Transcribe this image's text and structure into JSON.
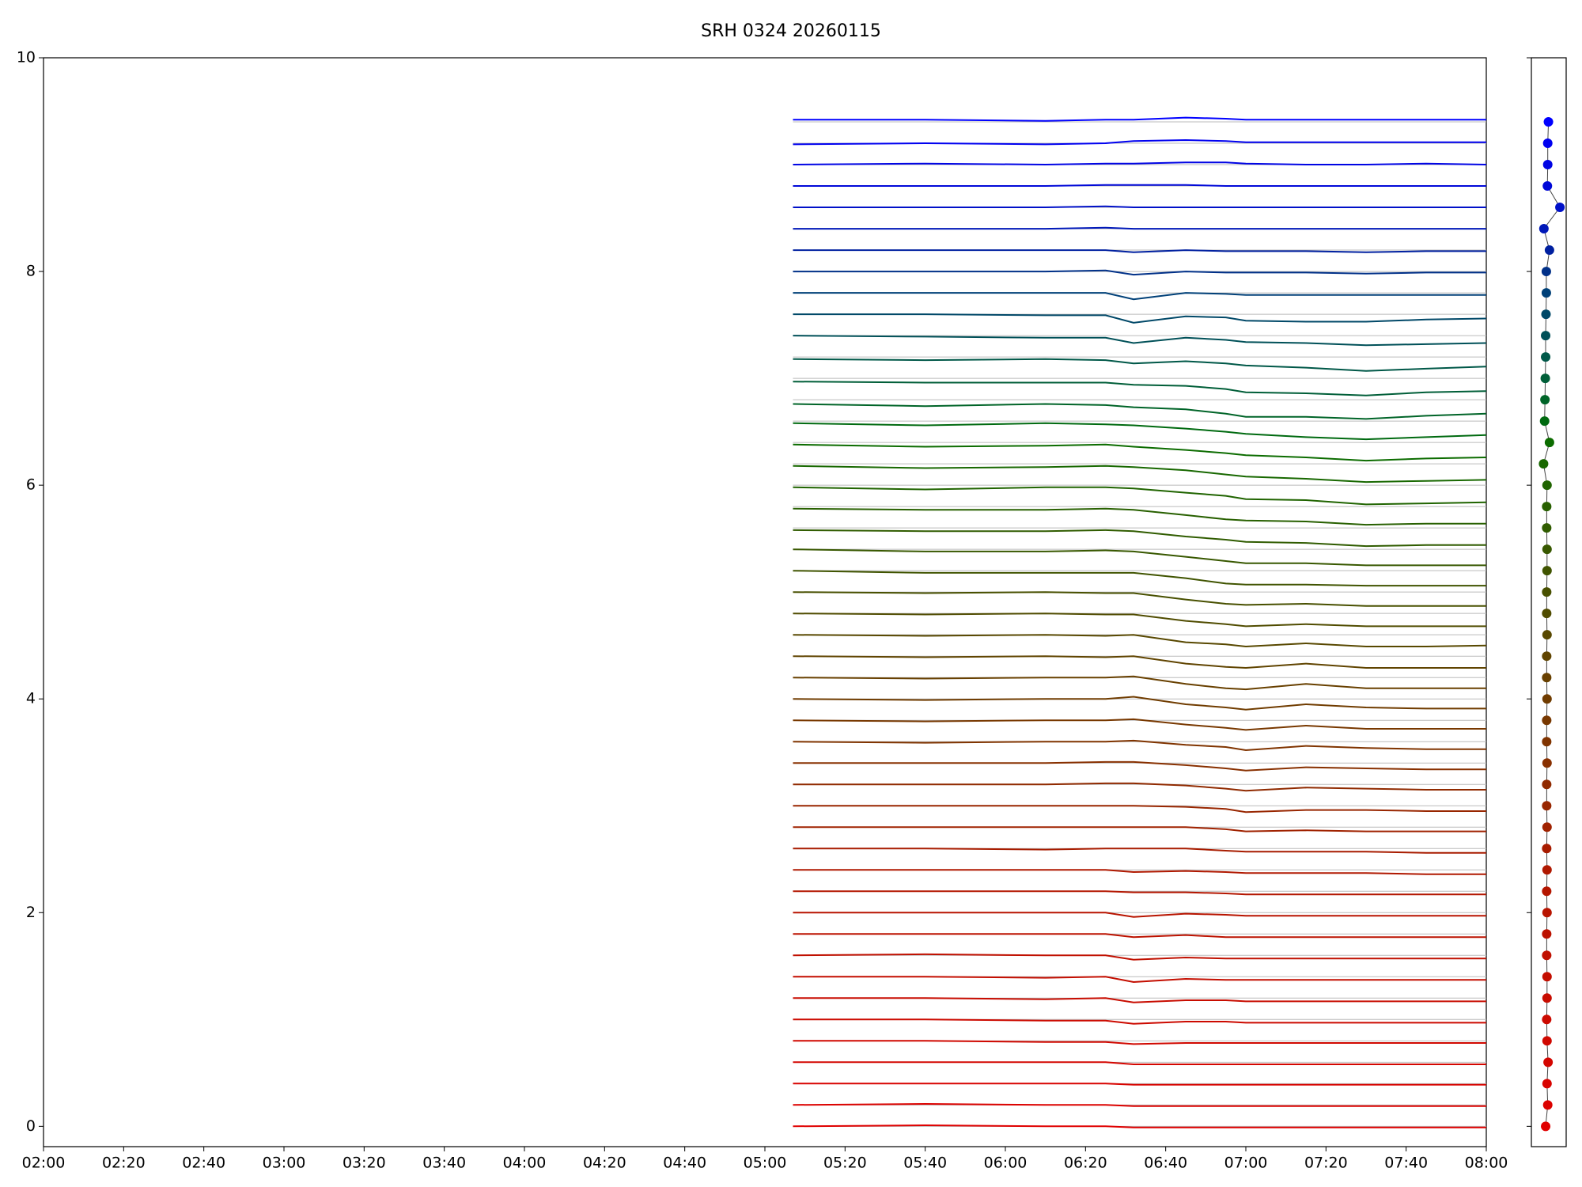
{
  "chart_data": {
    "type": "line",
    "title": "SRH 0324 20260115",
    "xlim": [
      "02:00",
      "08:00"
    ],
    "xticks": [
      "02:00",
      "02:20",
      "02:40",
      "03:00",
      "03:20",
      "03:40",
      "04:00",
      "04:20",
      "04:40",
      "05:00",
      "05:20",
      "05:40",
      "06:00",
      "06:20",
      "06:40",
      "07:00",
      "07:20",
      "07:40",
      "08:00"
    ],
    "ylim": [
      -0.19,
      10
    ],
    "yticks": [
      0,
      2,
      4,
      6,
      8,
      10
    ],
    "baseline_color": "#bbbbbb",
    "x": [
      "05:07",
      "05:40",
      "06:10",
      "06:25",
      "06:32",
      "06:45",
      "06:55",
      "07:00",
      "07:15",
      "07:30",
      "07:45",
      "08:00"
    ],
    "series": [
      {
        "offset": 0,
        "color": "#e00000",
        "values": [
          0.0,
          0.01,
          0.0,
          0.0,
          -0.01,
          -0.01,
          -0.01,
          -0.01,
          -0.01,
          -0.01,
          -0.01,
          -0.01
        ]
      },
      {
        "offset": 0.2,
        "color": "#dc0200",
        "values": [
          0.2,
          0.21,
          0.2,
          0.2,
          0.19,
          0.19,
          0.19,
          0.19,
          0.19,
          0.19,
          0.19,
          0.19
        ]
      },
      {
        "offset": 0.4,
        "color": "#d80400",
        "values": [
          0.4,
          0.4,
          0.4,
          0.4,
          0.39,
          0.39,
          0.39,
          0.39,
          0.39,
          0.39,
          0.39,
          0.39
        ]
      },
      {
        "offset": 0.6,
        "color": "#d40600",
        "values": [
          0.6,
          0.6,
          0.6,
          0.6,
          0.58,
          0.58,
          0.58,
          0.58,
          0.58,
          0.58,
          0.58,
          0.58
        ]
      },
      {
        "offset": 0.8,
        "color": "#d00800",
        "values": [
          0.8,
          0.8,
          0.79,
          0.79,
          0.77,
          0.78,
          0.78,
          0.78,
          0.78,
          0.78,
          0.78,
          0.78
        ]
      },
      {
        "offset": 1.0,
        "color": "#cc0a00",
        "values": [
          1.0,
          1.0,
          0.99,
          0.99,
          0.96,
          0.98,
          0.98,
          0.97,
          0.97,
          0.97,
          0.97,
          0.97
        ]
      },
      {
        "offset": 1.2,
        "color": "#c80c00",
        "values": [
          1.2,
          1.2,
          1.19,
          1.2,
          1.16,
          1.18,
          1.18,
          1.17,
          1.17,
          1.17,
          1.17,
          1.17
        ]
      },
      {
        "offset": 1.4,
        "color": "#c40e00",
        "values": [
          1.4,
          1.4,
          1.39,
          1.4,
          1.35,
          1.38,
          1.37,
          1.37,
          1.37,
          1.37,
          1.37,
          1.37
        ]
      },
      {
        "offset": 1.6,
        "color": "#c01000",
        "values": [
          1.6,
          1.61,
          1.6,
          1.6,
          1.56,
          1.58,
          1.57,
          1.57,
          1.57,
          1.57,
          1.57,
          1.57
        ]
      },
      {
        "offset": 1.8,
        "color": "#bc1200",
        "values": [
          1.8,
          1.8,
          1.8,
          1.8,
          1.77,
          1.79,
          1.77,
          1.77,
          1.77,
          1.77,
          1.77,
          1.77
        ]
      },
      {
        "offset": 2.0,
        "color": "#b81400",
        "values": [
          2.0,
          2.0,
          2.0,
          2.0,
          1.96,
          1.99,
          1.98,
          1.97,
          1.97,
          1.97,
          1.97,
          1.97
        ]
      },
      {
        "offset": 2.2,
        "color": "#b41600",
        "values": [
          2.2,
          2.2,
          2.2,
          2.2,
          2.19,
          2.19,
          2.18,
          2.17,
          2.17,
          2.17,
          2.17,
          2.17
        ]
      },
      {
        "offset": 2.4,
        "color": "#b01800",
        "values": [
          2.4,
          2.4,
          2.4,
          2.4,
          2.38,
          2.39,
          2.38,
          2.37,
          2.37,
          2.37,
          2.36,
          2.36
        ]
      },
      {
        "offset": 2.6,
        "color": "#a81c00",
        "values": [
          2.6,
          2.6,
          2.59,
          2.6,
          2.6,
          2.6,
          2.58,
          2.57,
          2.57,
          2.57,
          2.56,
          2.56
        ]
      },
      {
        "offset": 2.8,
        "color": "#a02200",
        "values": [
          2.8,
          2.8,
          2.8,
          2.8,
          2.8,
          2.8,
          2.78,
          2.76,
          2.77,
          2.76,
          2.76,
          2.76
        ]
      },
      {
        "offset": 3.0,
        "color": "#982600",
        "values": [
          3.0,
          3.0,
          3.0,
          3.0,
          3.0,
          2.99,
          2.97,
          2.94,
          2.96,
          2.96,
          2.95,
          2.95
        ]
      },
      {
        "offset": 3.2,
        "color": "#902a00",
        "values": [
          3.2,
          3.2,
          3.2,
          3.21,
          3.21,
          3.19,
          3.16,
          3.14,
          3.17,
          3.16,
          3.15,
          3.15
        ]
      },
      {
        "offset": 3.4,
        "color": "#883000",
        "values": [
          3.4,
          3.4,
          3.4,
          3.41,
          3.41,
          3.38,
          3.35,
          3.33,
          3.36,
          3.35,
          3.34,
          3.34
        ]
      },
      {
        "offset": 3.6,
        "color": "#803400",
        "values": [
          3.6,
          3.59,
          3.6,
          3.6,
          3.61,
          3.57,
          3.55,
          3.52,
          3.56,
          3.54,
          3.53,
          3.53
        ]
      },
      {
        "offset": 3.8,
        "color": "#783800",
        "values": [
          3.8,
          3.79,
          3.8,
          3.8,
          3.81,
          3.76,
          3.73,
          3.71,
          3.75,
          3.72,
          3.72,
          3.72
        ]
      },
      {
        "offset": 4.0,
        "color": "#703c00",
        "values": [
          4.0,
          3.99,
          4.0,
          4.0,
          4.02,
          3.95,
          3.92,
          3.9,
          3.95,
          3.92,
          3.91,
          3.91
        ]
      },
      {
        "offset": 4.2,
        "color": "#684000",
        "values": [
          4.2,
          4.19,
          4.2,
          4.2,
          4.21,
          4.14,
          4.1,
          4.09,
          4.14,
          4.1,
          4.1,
          4.1
        ]
      },
      {
        "offset": 4.4,
        "color": "#604400",
        "values": [
          4.4,
          4.39,
          4.4,
          4.39,
          4.4,
          4.33,
          4.3,
          4.29,
          4.33,
          4.29,
          4.29,
          4.29
        ]
      },
      {
        "offset": 4.6,
        "color": "#584800",
        "values": [
          4.6,
          4.59,
          4.6,
          4.59,
          4.6,
          4.53,
          4.51,
          4.49,
          4.52,
          4.49,
          4.49,
          4.5
        ]
      },
      {
        "offset": 4.8,
        "color": "#504c00",
        "values": [
          4.8,
          4.79,
          4.8,
          4.79,
          4.79,
          4.73,
          4.7,
          4.68,
          4.7,
          4.68,
          4.68,
          4.68
        ]
      },
      {
        "offset": 5.0,
        "color": "#485000",
        "values": [
          5.0,
          4.99,
          5.0,
          4.99,
          4.99,
          4.93,
          4.89,
          4.88,
          4.89,
          4.87,
          4.87,
          4.87
        ]
      },
      {
        "offset": 5.2,
        "color": "#405400",
        "values": [
          5.2,
          5.18,
          5.18,
          5.18,
          5.18,
          5.13,
          5.08,
          5.07,
          5.07,
          5.06,
          5.06,
          5.06
        ]
      },
      {
        "offset": 5.4,
        "color": "#385800",
        "values": [
          5.4,
          5.38,
          5.38,
          5.39,
          5.38,
          5.33,
          5.29,
          5.27,
          5.27,
          5.25,
          5.25,
          5.25
        ]
      },
      {
        "offset": 5.6,
        "color": "#305c00",
        "values": [
          5.58,
          5.57,
          5.57,
          5.58,
          5.57,
          5.52,
          5.49,
          5.47,
          5.46,
          5.43,
          5.44,
          5.44
        ]
      },
      {
        "offset": 5.8,
        "color": "#286000",
        "values": [
          5.78,
          5.77,
          5.77,
          5.78,
          5.77,
          5.72,
          5.68,
          5.67,
          5.66,
          5.63,
          5.64,
          5.64
        ]
      },
      {
        "offset": 6.0,
        "color": "#206400",
        "values": [
          5.98,
          5.96,
          5.98,
          5.98,
          5.97,
          5.93,
          5.9,
          5.87,
          5.86,
          5.82,
          5.83,
          5.84
        ]
      },
      {
        "offset": 6.2,
        "color": "#186800",
        "values": [
          6.18,
          6.16,
          6.17,
          6.18,
          6.17,
          6.14,
          6.1,
          6.08,
          6.06,
          6.03,
          6.04,
          6.05
        ]
      },
      {
        "offset": 6.4,
        "color": "#0c6c00",
        "values": [
          6.38,
          6.36,
          6.37,
          6.38,
          6.36,
          6.33,
          6.3,
          6.28,
          6.26,
          6.23,
          6.25,
          6.26
        ]
      },
      {
        "offset": 6.6,
        "color": "#006a10",
        "values": [
          6.58,
          6.56,
          6.58,
          6.57,
          6.56,
          6.53,
          6.5,
          6.48,
          6.45,
          6.43,
          6.45,
          6.47
        ]
      },
      {
        "offset": 6.8,
        "color": "#006428",
        "values": [
          6.76,
          6.74,
          6.76,
          6.75,
          6.73,
          6.71,
          6.67,
          6.64,
          6.64,
          6.62,
          6.65,
          6.67
        ]
      },
      {
        "offset": 7.0,
        "color": "#005e38",
        "values": [
          6.97,
          6.96,
          6.96,
          6.96,
          6.94,
          6.93,
          6.9,
          6.87,
          6.86,
          6.84,
          6.87,
          6.88
        ]
      },
      {
        "offset": 7.2,
        "color": "#005848",
        "values": [
          7.18,
          7.17,
          7.18,
          7.17,
          7.14,
          7.16,
          7.14,
          7.12,
          7.1,
          7.07,
          7.09,
          7.11
        ]
      },
      {
        "offset": 7.4,
        "color": "#005058",
        "values": [
          7.4,
          7.39,
          7.38,
          7.38,
          7.33,
          7.38,
          7.36,
          7.34,
          7.33,
          7.31,
          7.32,
          7.33
        ]
      },
      {
        "offset": 7.6,
        "color": "#004868",
        "values": [
          7.6,
          7.6,
          7.59,
          7.59,
          7.52,
          7.58,
          7.57,
          7.54,
          7.53,
          7.53,
          7.55,
          7.56
        ]
      },
      {
        "offset": 7.8,
        "color": "#004078",
        "values": [
          7.8,
          7.8,
          7.8,
          7.8,
          7.74,
          7.8,
          7.79,
          7.78,
          7.78,
          7.78,
          7.78,
          7.78
        ]
      },
      {
        "offset": 8.0,
        "color": "#003088",
        "values": [
          8.0,
          8.0,
          8.0,
          8.01,
          7.97,
          8.0,
          7.99,
          7.99,
          7.99,
          7.98,
          7.99,
          7.99
        ]
      },
      {
        "offset": 8.2,
        "color": "#0020a0",
        "values": [
          8.2,
          8.2,
          8.2,
          8.2,
          8.18,
          8.2,
          8.19,
          8.19,
          8.19,
          8.18,
          8.19,
          8.19
        ]
      },
      {
        "offset": 8.4,
        "color": "#0018b8",
        "values": [
          8.4,
          8.4,
          8.4,
          8.41,
          8.4,
          8.4,
          8.4,
          8.4,
          8.4,
          8.4,
          8.4,
          8.4
        ]
      },
      {
        "offset": 8.6,
        "color": "#0010c8",
        "values": [
          8.6,
          8.6,
          8.6,
          8.61,
          8.6,
          8.6,
          8.6,
          8.6,
          8.6,
          8.6,
          8.6,
          8.6
        ]
      },
      {
        "offset": 8.8,
        "color": "#0008d8",
        "values": [
          8.8,
          8.8,
          8.8,
          8.81,
          8.81,
          8.81,
          8.8,
          8.8,
          8.8,
          8.8,
          8.8,
          8.8
        ]
      },
      {
        "offset": 9.0,
        "color": "#0004e4",
        "values": [
          9.0,
          9.01,
          9.0,
          9.01,
          9.01,
          9.02,
          9.02,
          9.01,
          9.0,
          9.0,
          9.01,
          9.0
        ]
      },
      {
        "offset": 9.2,
        "color": "#0000f0",
        "values": [
          9.19,
          9.2,
          9.19,
          9.2,
          9.22,
          9.23,
          9.22,
          9.21,
          9.21,
          9.21,
          9.21,
          9.21
        ]
      },
      {
        "offset": 9.4,
        "color": "#0000ff",
        "values": [
          9.42,
          9.42,
          9.41,
          9.42,
          9.42,
          9.44,
          9.43,
          9.42,
          9.42,
          9.42,
          9.42,
          9.42
        ]
      }
    ],
    "side_markers": {
      "xlim": [
        0,
        1
      ],
      "x": [
        0.41,
        0.47,
        0.45,
        0.48,
        0.45,
        0.44,
        0.45,
        0.45,
        0.44,
        0.44,
        0.45,
        0.44,
        0.45,
        0.44,
        0.45,
        0.44,
        0.44,
        0.45,
        0.44,
        0.44,
        0.45,
        0.44,
        0.44,
        0.45,
        0.44,
        0.44,
        0.45,
        0.45,
        0.44,
        0.44,
        0.45,
        0.35,
        0.52,
        0.38,
        0.39,
        0.4,
        0.41,
        0.41,
        0.42,
        0.43,
        0.43,
        0.52,
        0.36,
        0.82,
        0.46,
        0.47,
        0.47,
        0.49
      ]
    }
  }
}
